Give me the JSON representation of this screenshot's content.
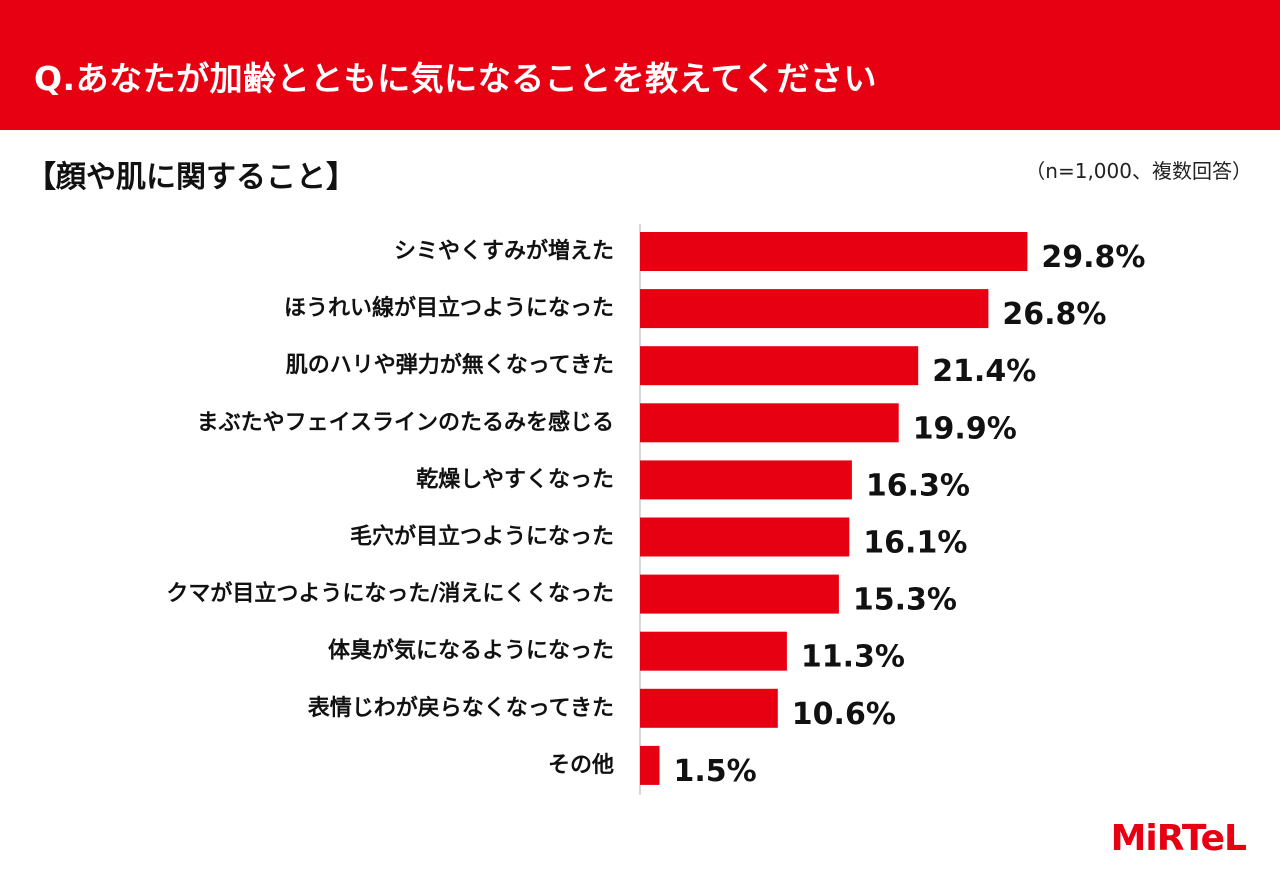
{
  "header": {
    "title": "Q.あなたが加齢とともに気になることを教えてください"
  },
  "section": {
    "title": "【顔や肌に関すること】",
    "note": "（n=1,000、複数回答）"
  },
  "logo": {
    "text": "MiRTeL"
  },
  "colors": {
    "accent": "#e60012",
    "bar": "#e60012",
    "text": "#111111",
    "axis": "#cccccc"
  },
  "chart_data": {
    "type": "bar",
    "orientation": "horizontal",
    "title": "【顔や肌に関すること】",
    "categories": [
      "シミやくすみが増えた",
      "ほうれい線が目立つようになった",
      "肌のハリや弾力が無くなってきた",
      "まぶたやフェイスラインのたるみを感じる",
      "乾燥しやすくなった",
      "毛穴が目立つようになった",
      "クマが目立つようになった/消えにくくなった",
      "体臭が気になるようになった",
      "表情じわが戻らなくなってきた",
      "その他"
    ],
    "values": [
      29.8,
      26.8,
      21.4,
      19.9,
      16.3,
      16.1,
      15.3,
      11.3,
      10.6,
      1.5
    ],
    "value_labels": [
      "29.8%",
      "26.8%",
      "21.4%",
      "19.9%",
      "16.3%",
      "16.1%",
      "15.3%",
      "11.3%",
      "10.6%",
      "1.5%"
    ],
    "unit": "%",
    "xlim": [
      0,
      30
    ],
    "grid": false,
    "legend": "none"
  }
}
